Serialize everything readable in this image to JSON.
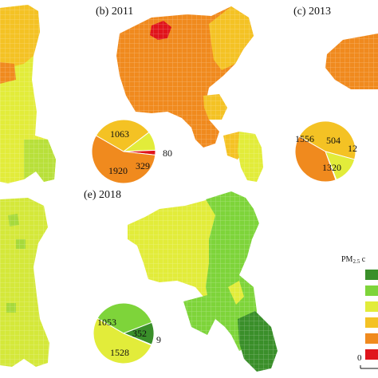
{
  "colors": {
    "c1": "#3a8f2a",
    "c2": "#7ed43a",
    "c3": "#e2ec3a",
    "c4": "#f4c224",
    "c5": "#f08a1e",
    "c6": "#e0141b",
    "c4_light": "#f6d13a",
    "grid": "rgba(255,255,255,0.35)"
  },
  "panels": {
    "b": {
      "title": "(b) 2011",
      "pie": [
        {
          "label": "1063",
          "value": 1063,
          "color": "#f4c224"
        },
        {
          "label": "329",
          "value": 329,
          "color": "#e2ec3a"
        },
        {
          "label": "80",
          "value": 80,
          "color": "#e0141b"
        },
        {
          "label": "1920",
          "value": 1920,
          "color": "#f08a1e"
        }
      ]
    },
    "c": {
      "title": "(c) 2013",
      "pie": [
        {
          "label": "1556",
          "value": 1556,
          "color": "#f4c224"
        },
        {
          "label": "504",
          "value": 504,
          "color": "#e2ec3a"
        },
        {
          "label": "12",
          "value": 12,
          "color": "#e0141b"
        },
        {
          "label": "1320",
          "value": 1320,
          "color": "#f08a1e"
        }
      ]
    },
    "e": {
      "title": "(e) 2018",
      "pie": [
        {
          "label": "1053",
          "value": 1053,
          "color": "#7ed43a"
        },
        {
          "label": "352",
          "value": 352,
          "color": "#3a8f2a"
        },
        {
          "label": "9",
          "value": 9,
          "color": "#f4c224"
        },
        {
          "label": "1528",
          "value": 1528,
          "color": "#e2ec3a"
        }
      ]
    }
  },
  "legend": {
    "title": "PM",
    "title_sub": "2.5",
    "title_rest": " c",
    "tick": "0",
    "swatches": [
      "#3a8f2a",
      "#7ed43a",
      "#e2ec3a",
      "#f4c224",
      "#f08a1e",
      "#e0141b"
    ]
  }
}
